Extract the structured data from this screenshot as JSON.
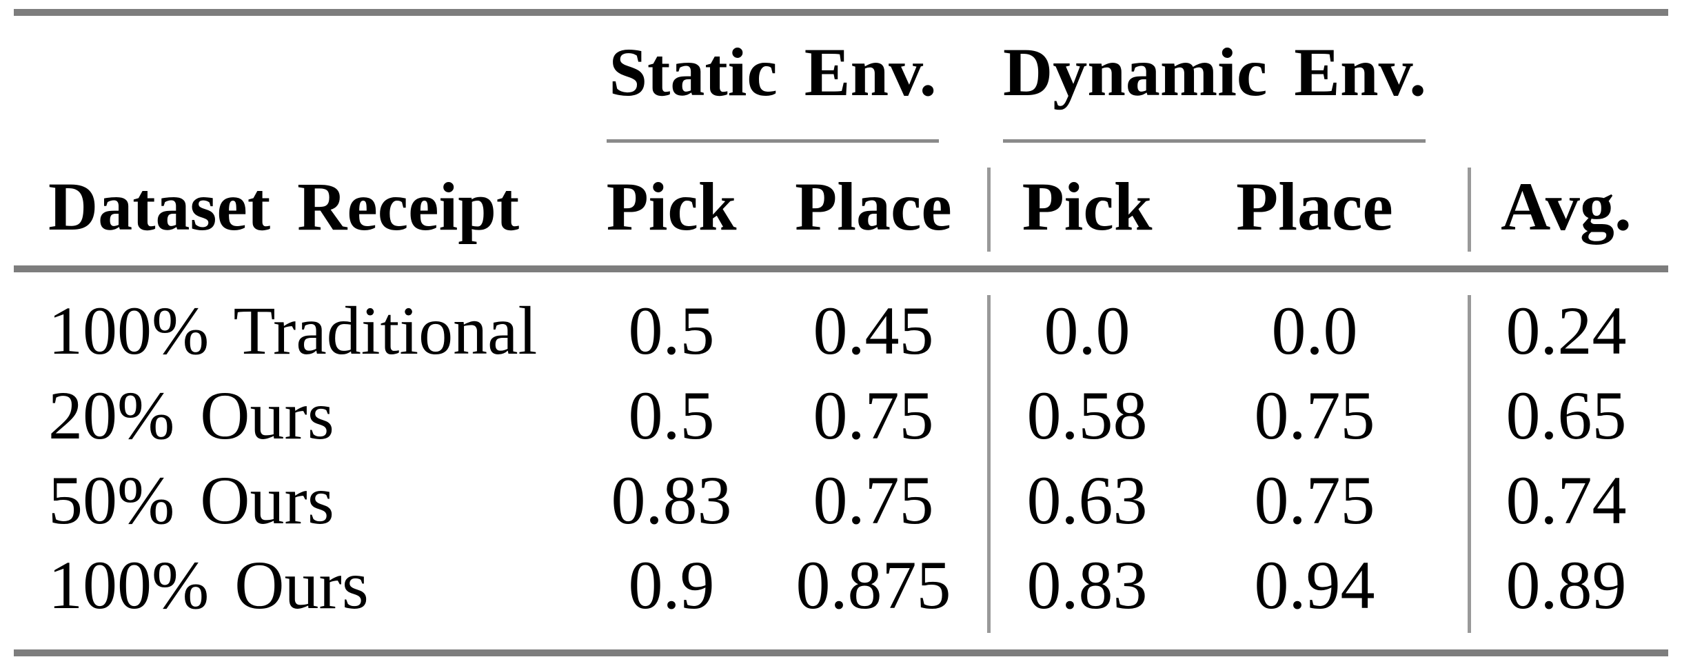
{
  "table": {
    "groups": [
      {
        "label": "Static Env."
      },
      {
        "label": "Dynamic Env."
      }
    ],
    "headers": {
      "dataset": "Dataset Receipt",
      "static_pick": "Pick",
      "static_place": "Place",
      "dynamic_pick": "Pick",
      "dynamic_place": "Place",
      "avg": "Avg."
    },
    "rows": [
      {
        "label": "100% Traditional",
        "static_pick": "0.5",
        "static_place": "0.45",
        "dynamic_pick": "0.0",
        "dynamic_place": "0.0",
        "avg": "0.24"
      },
      {
        "label": "20% Ours",
        "static_pick": "0.5",
        "static_place": "0.75",
        "dynamic_pick": "0.58",
        "dynamic_place": "0.75",
        "avg": "0.65"
      },
      {
        "label": "50% Ours",
        "static_pick": "0.83",
        "static_place": "0.75",
        "dynamic_pick": "0.63",
        "dynamic_place": "0.75",
        "avg": "0.74"
      },
      {
        "label": "100% Ours",
        "static_pick": "0.9",
        "static_place": "0.875",
        "dynamic_pick": "0.83",
        "dynamic_place": "0.94",
        "avg": "0.89"
      }
    ],
    "rule_color": "#7d7d7d",
    "cmidrule_color": "#8a8a8a",
    "separator_color": "#999999"
  },
  "chart_data": {
    "type": "table",
    "column_groups": [
      "Static Env.",
      "Dynamic Env."
    ],
    "columns": [
      "Dataset Receipt",
      "Static Env. Pick",
      "Static Env. Place",
      "Dynamic Env. Pick",
      "Dynamic Env. Place",
      "Avg."
    ],
    "rows": [
      [
        "100% Traditional",
        0.5,
        0.45,
        0.0,
        0.0,
        0.24
      ],
      [
        "20% Ours",
        0.5,
        0.75,
        0.58,
        0.75,
        0.65
      ],
      [
        "50% Ours",
        0.83,
        0.75,
        0.63,
        0.75,
        0.74
      ],
      [
        "100% Ours",
        0.9,
        0.875,
        0.83,
        0.94,
        0.89
      ]
    ]
  }
}
